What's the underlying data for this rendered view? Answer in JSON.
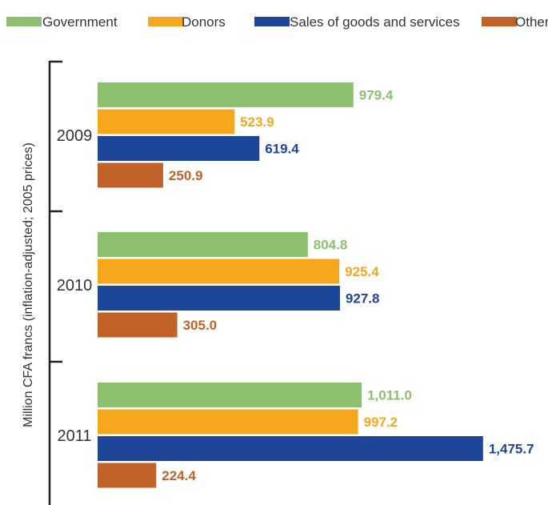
{
  "chart_data": {
    "type": "bar",
    "orientation": "horizontal",
    "ylabel": "Million CFA francs (inflation-adjusted; 2005 prices)",
    "xlabel": "",
    "categories": [
      "2009",
      "2010",
      "2011"
    ],
    "xlim": [
      0,
      1500
    ],
    "grid": false,
    "legend_position": "top",
    "series": [
      {
        "name": "Government",
        "color": "#8cc06f",
        "values": [
          979.4,
          804.8,
          1011.0
        ],
        "labels": [
          "979.4",
          "804.8",
          "1,011.0"
        ]
      },
      {
        "name": "Donors",
        "color": "#f5a71d",
        "values": [
          523.9,
          925.4,
          997.2
        ],
        "labels": [
          "523.9",
          "925.4",
          "997.2"
        ]
      },
      {
        "name": "Sales of goods and services",
        "color": "#1d4598",
        "values": [
          619.4,
          927.8,
          1475.7
        ],
        "labels": [
          "619.4",
          "927.8",
          "1,475.7"
        ]
      },
      {
        "name": "Other",
        "color": "#c1622a",
        "values": [
          250.9,
          305.0,
          224.4
        ],
        "labels": [
          "250.9",
          "305.0",
          "224.4"
        ]
      }
    ]
  }
}
